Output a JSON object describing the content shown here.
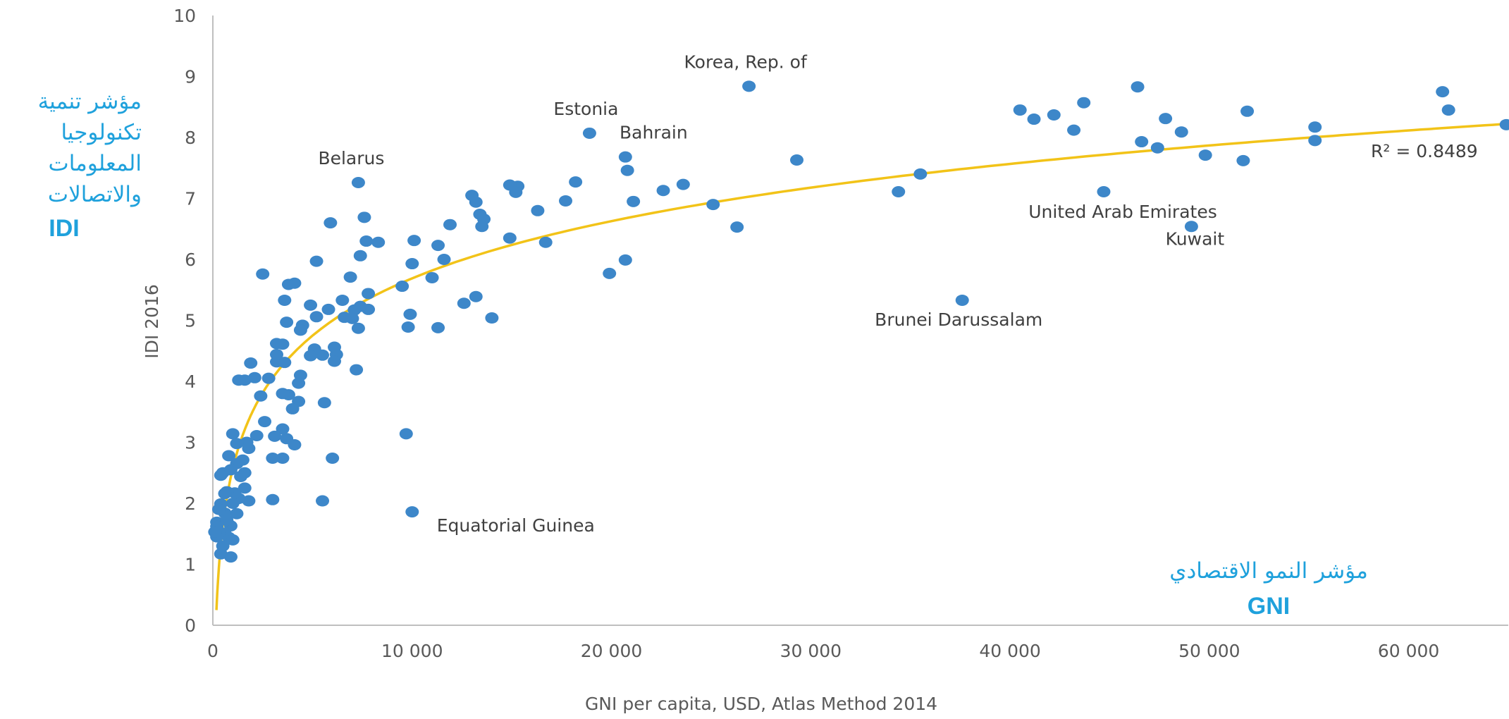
{
  "colors": {
    "point": "#3d87c9",
    "trend": "#f2c318",
    "axis": "#bfbfbf",
    "arabic_label": "#1fa1dc"
  },
  "side_labels": {
    "idi_arabic": [
      "مؤشر تنمية",
      "تكنولوجيا",
      "المعلومات",
      "والاتصالات"
    ],
    "idi_abbr": "IDI",
    "gni_arabic": "مؤشر النمو الاقتصادي",
    "gni_abbr": "GNI"
  },
  "chart_data": {
    "type": "scatter",
    "title": "",
    "xlabel": "GNI per capita, USD, Atlas Method 2014",
    "ylabel": "IDI 2016",
    "xlim": [
      0,
      65000
    ],
    "ylim": [
      0,
      10
    ],
    "x_ticks": [
      0,
      10000,
      20000,
      30000,
      40000,
      50000,
      60000
    ],
    "x_tick_labels": [
      "0",
      "10 000",
      "20 000",
      "30 000",
      "40 000",
      "50 000",
      "60 000"
    ],
    "y_ticks": [
      0,
      1,
      2,
      3,
      4,
      5,
      6,
      7,
      8,
      9,
      10
    ],
    "y_tick_labels": [
      "0",
      "1",
      "2",
      "3",
      "4",
      "5",
      "6",
      "7",
      "8",
      "9",
      "10"
    ],
    "grid": false,
    "trendline": {
      "type": "logarithmic",
      "r2_label": "R² = 0.8489"
    },
    "annotations": [
      {
        "label": "Korea, Rep. of",
        "x": 26900,
        "y": 8.84
      },
      {
        "label": "Estonia",
        "x": 18900,
        "y": 8.07
      },
      {
        "label": "Bahrain",
        "x": 20700,
        "y": 7.68
      },
      {
        "label": "Belarus",
        "x": 7300,
        "y": 7.26
      },
      {
        "label": "United Arab Emirates",
        "x": 44700,
        "y": 7.11
      },
      {
        "label": "Kuwait",
        "x": 49100,
        "y": 6.54
      },
      {
        "label": "Brunei Darussalam",
        "x": 37600,
        "y": 5.33
      },
      {
        "label": "Equatorial Guinea",
        "x": 10000,
        "y": 1.86
      }
    ],
    "points": [
      [
        26900,
        8.84
      ],
      [
        18900,
        8.07
      ],
      [
        20700,
        7.68
      ],
      [
        7300,
        7.26
      ],
      [
        44700,
        7.11
      ],
      [
        49100,
        6.54
      ],
      [
        37600,
        5.33
      ],
      [
        10000,
        1.86
      ],
      [
        61700,
        8.75
      ],
      [
        62000,
        8.45
      ],
      [
        64900,
        8.21
      ],
      [
        46400,
        8.83
      ],
      [
        40500,
        8.45
      ],
      [
        41200,
        8.3
      ],
      [
        42200,
        8.37
      ],
      [
        43200,
        8.12
      ],
      [
        43700,
        8.57
      ],
      [
        46600,
        7.93
      ],
      [
        47400,
        7.83
      ],
      [
        47800,
        8.31
      ],
      [
        48600,
        8.09
      ],
      [
        49800,
        7.71
      ],
      [
        51700,
        7.62
      ],
      [
        51900,
        8.43
      ],
      [
        55300,
        8.17
      ],
      [
        55300,
        7.95
      ],
      [
        29300,
        7.63
      ],
      [
        34400,
        7.11
      ],
      [
        35500,
        7.4
      ],
      [
        25100,
        6.9
      ],
      [
        26300,
        6.53
      ],
      [
        22600,
        7.13
      ],
      [
        23600,
        7.23
      ],
      [
        21100,
        6.95
      ],
      [
        20800,
        7.46
      ],
      [
        20700,
        5.99
      ],
      [
        19900,
        5.77
      ],
      [
        18200,
        7.27
      ],
      [
        17700,
        6.96
      ],
      [
        16700,
        6.28
      ],
      [
        16300,
        6.8
      ],
      [
        15300,
        7.2
      ],
      [
        15200,
        7.1
      ],
      [
        14900,
        7.22
      ],
      [
        14900,
        6.35
      ],
      [
        14000,
        5.04
      ],
      [
        13600,
        6.66
      ],
      [
        13400,
        6.74
      ],
      [
        13500,
        6.54
      ],
      [
        13200,
        6.94
      ],
      [
        13000,
        7.05
      ],
      [
        13200,
        5.39
      ],
      [
        12600,
        5.28
      ],
      [
        11900,
        6.57
      ],
      [
        11600,
        6.0
      ],
      [
        11300,
        6.23
      ],
      [
        11000,
        5.7
      ],
      [
        11300,
        4.88
      ],
      [
        10100,
        6.31
      ],
      [
        10000,
        5.93
      ],
      [
        9900,
        5.1
      ],
      [
        9800,
        4.89
      ],
      [
        9700,
        3.14
      ],
      [
        9500,
        5.56
      ],
      [
        8300,
        6.28
      ],
      [
        7800,
        5.44
      ],
      [
        7800,
        5.18
      ],
      [
        7700,
        6.3
      ],
      [
        7600,
        6.69
      ],
      [
        7400,
        6.06
      ],
      [
        7400,
        5.23
      ],
      [
        7300,
        4.87
      ],
      [
        7200,
        4.19
      ],
      [
        7100,
        5.17
      ],
      [
        7000,
        5.03
      ],
      [
        6900,
        5.71
      ],
      [
        6600,
        5.05
      ],
      [
        6500,
        5.33
      ],
      [
        6200,
        4.44
      ],
      [
        6100,
        4.56
      ],
      [
        6100,
        4.33
      ],
      [
        6000,
        2.74
      ],
      [
        5900,
        6.6
      ],
      [
        5800,
        5.18
      ],
      [
        5600,
        3.65
      ],
      [
        5500,
        4.43
      ],
      [
        5500,
        2.04
      ],
      [
        5200,
        5.97
      ],
      [
        5200,
        5.06
      ],
      [
        5100,
        4.53
      ],
      [
        4900,
        5.25
      ],
      [
        4900,
        4.42
      ],
      [
        4500,
        4.92
      ],
      [
        4400,
        4.84
      ],
      [
        4400,
        4.1
      ],
      [
        4300,
        3.67
      ],
      [
        4300,
        3.97
      ],
      [
        4100,
        5.61
      ],
      [
        4100,
        2.96
      ],
      [
        4000,
        3.55
      ],
      [
        3800,
        5.59
      ],
      [
        3800,
        3.78
      ],
      [
        3700,
        4.97
      ],
      [
        3700,
        3.06
      ],
      [
        3600,
        5.33
      ],
      [
        3600,
        4.31
      ],
      [
        3500,
        4.61
      ],
      [
        3500,
        3.8
      ],
      [
        3500,
        3.22
      ],
      [
        3500,
        2.74
      ],
      [
        3200,
        4.62
      ],
      [
        3200,
        4.32
      ],
      [
        3200,
        4.44
      ],
      [
        3100,
        3.1
      ],
      [
        3000,
        2.74
      ],
      [
        3000,
        2.06
      ],
      [
        2800,
        4.05
      ],
      [
        2600,
        3.34
      ],
      [
        2500,
        5.76
      ],
      [
        2400,
        3.76
      ],
      [
        2200,
        3.11
      ],
      [
        2100,
        4.06
      ],
      [
        1900,
        4.3
      ],
      [
        1800,
        2.04
      ],
      [
        1800,
        2.9
      ],
      [
        1700,
        3.0
      ],
      [
        1600,
        4.02
      ],
      [
        1600,
        2.25
      ],
      [
        1600,
        2.5
      ],
      [
        1500,
        2.71
      ],
      [
        1400,
        2.44
      ],
      [
        1300,
        4.02
      ],
      [
        1300,
        2.08
      ],
      [
        1200,
        2.65
      ],
      [
        1200,
        1.83
      ],
      [
        1200,
        2.98
      ],
      [
        1100,
        2.17
      ],
      [
        1000,
        3.14
      ],
      [
        1000,
        2.0
      ],
      [
        900,
        1.63
      ],
      [
        900,
        2.55
      ],
      [
        900,
        1.12
      ],
      [
        800,
        2.78
      ],
      [
        800,
        1.44
      ],
      [
        700,
        2.19
      ],
      [
        600,
        1.84
      ],
      [
        600,
        2.16
      ],
      [
        600,
        1.51
      ],
      [
        500,
        2.5
      ],
      [
        400,
        1.99
      ],
      [
        400,
        2.46
      ],
      [
        400,
        1.17
      ],
      [
        300,
        1.52
      ],
      [
        200,
        1.69
      ],
      [
        200,
        1.62
      ],
      [
        200,
        1.45
      ],
      [
        100,
        1.53
      ],
      [
        300,
        1.9
      ],
      [
        500,
        1.3
      ],
      [
        700,
        1.72
      ],
      [
        1000,
        1.4
      ]
    ]
  }
}
